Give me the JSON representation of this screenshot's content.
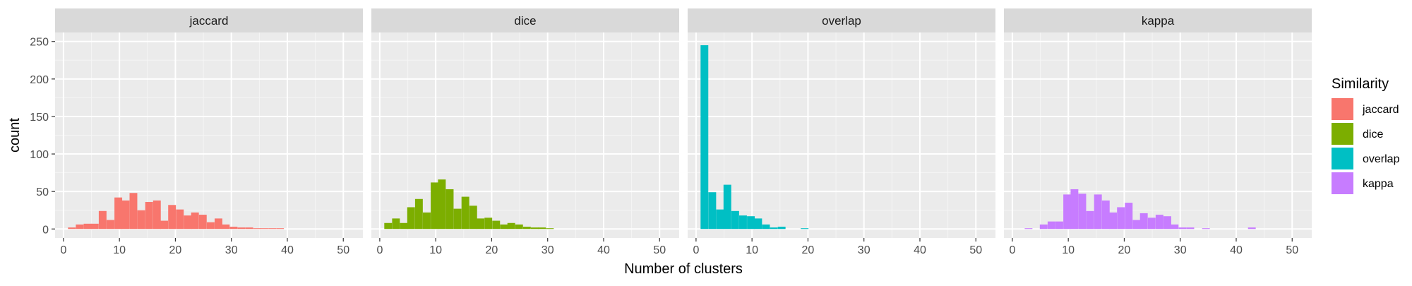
{
  "chart_data": {
    "type": "histogram",
    "xlabel": "Number of clusters",
    "ylabel": "count",
    "xlim": [
      -1.5,
      53.5
    ],
    "ylim": [
      -12,
      262
    ],
    "x_ticks": [
      0,
      10,
      20,
      30,
      40,
      50
    ],
    "y_ticks": [
      0,
      50,
      100,
      150,
      200,
      250
    ],
    "bin_width": 1.38,
    "grid": true,
    "legend": {
      "title": "Similarity",
      "position": "right",
      "items": [
        "jaccard",
        "dice",
        "overlap",
        "kappa"
      ]
    },
    "panels": [
      {
        "name": "jaccard",
        "color": "#F8766D",
        "bins": [
          [
            1.5,
            2
          ],
          [
            2.9,
            6
          ],
          [
            4.3,
            7
          ],
          [
            5.6,
            7
          ],
          [
            7,
            24
          ],
          [
            8.4,
            12
          ],
          [
            9.8,
            42
          ],
          [
            11.1,
            38
          ],
          [
            12.5,
            48
          ],
          [
            13.9,
            25
          ],
          [
            15.3,
            36
          ],
          [
            16.7,
            38
          ],
          [
            18,
            11
          ],
          [
            19.4,
            32
          ],
          [
            20.8,
            26
          ],
          [
            22.2,
            18
          ],
          [
            23.5,
            22
          ],
          [
            24.9,
            19
          ],
          [
            26.3,
            9
          ],
          [
            27.7,
            14
          ],
          [
            29,
            6
          ],
          [
            30.4,
            3
          ],
          [
            31.8,
            2
          ],
          [
            33.2,
            2
          ],
          [
            34.6,
            1
          ],
          [
            35.9,
            1
          ],
          [
            37.3,
            1
          ],
          [
            38.7,
            1
          ]
        ]
      },
      {
        "name": "dice",
        "color": "#7CAE00",
        "bins": [
          [
            1.5,
            8
          ],
          [
            2.9,
            14
          ],
          [
            4.3,
            8
          ],
          [
            5.6,
            29
          ],
          [
            7,
            40
          ],
          [
            8.4,
            22
          ],
          [
            9.8,
            62
          ],
          [
            11.1,
            66
          ],
          [
            12.5,
            53
          ],
          [
            13.9,
            27
          ],
          [
            15.3,
            43
          ],
          [
            16.7,
            31
          ],
          [
            18,
            14
          ],
          [
            19.4,
            15
          ],
          [
            20.8,
            11
          ],
          [
            22.2,
            6
          ],
          [
            23.5,
            8
          ],
          [
            24.9,
            6
          ],
          [
            26.3,
            3
          ],
          [
            27.7,
            2
          ],
          [
            29,
            2
          ],
          [
            30.4,
            1
          ]
        ]
      },
      {
        "name": "overlap",
        "color": "#00BFC4",
        "bins": [
          [
            1.5,
            245
          ],
          [
            2.9,
            49
          ],
          [
            4.3,
            26
          ],
          [
            5.6,
            59
          ],
          [
            7,
            24
          ],
          [
            8.4,
            18
          ],
          [
            9.8,
            17
          ],
          [
            11.1,
            14
          ],
          [
            12.5,
            6
          ],
          [
            13.9,
            2
          ],
          [
            15.3,
            3
          ],
          [
            19.4,
            1
          ]
        ]
      },
      {
        "name": "kappa",
        "color": "#C77CFF",
        "bins": [
          [
            2.9,
            1
          ],
          [
            5.6,
            6
          ],
          [
            7,
            10
          ],
          [
            8.4,
            10
          ],
          [
            9.8,
            46
          ],
          [
            11.1,
            53
          ],
          [
            12.5,
            47
          ],
          [
            13.9,
            24
          ],
          [
            15.3,
            46
          ],
          [
            16.7,
            38
          ],
          [
            18,
            22
          ],
          [
            19.4,
            29
          ],
          [
            20.8,
            35
          ],
          [
            22.2,
            12
          ],
          [
            23.5,
            21
          ],
          [
            24.9,
            15
          ],
          [
            26.3,
            19
          ],
          [
            27.7,
            17
          ],
          [
            29,
            6
          ],
          [
            30.4,
            2
          ],
          [
            31.8,
            2
          ],
          [
            34.6,
            1
          ],
          [
            42.8,
            2
          ]
        ]
      }
    ]
  }
}
